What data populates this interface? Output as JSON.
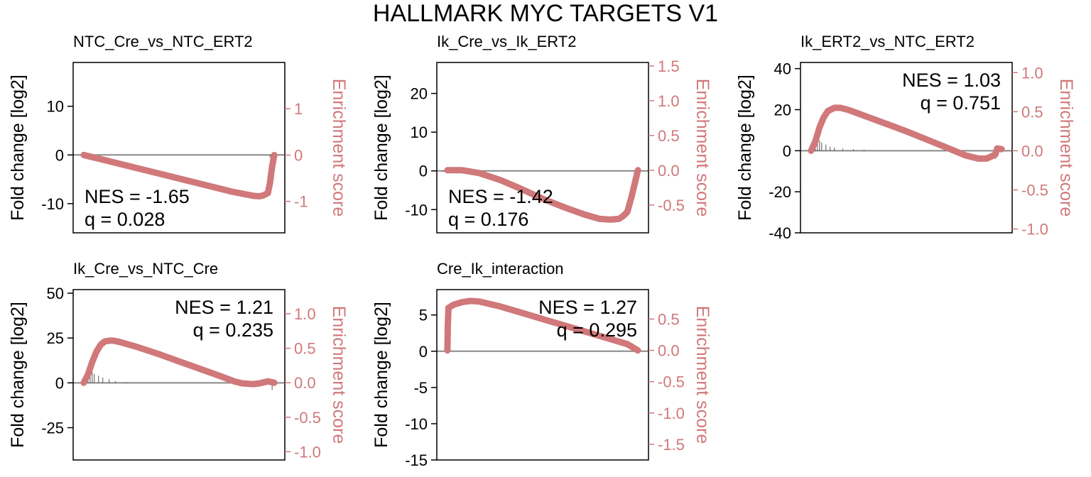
{
  "figure": {
    "title": "HALLMARK  MYC  TARGETS  V1",
    "curve_color": "#d0787a",
    "axis_color": "#000000",
    "zero_line_color": "#888888",
    "right_axis_color": "#d0787a"
  },
  "chart_data": [
    {
      "type": "line",
      "title": "NTC_Cre_vs_NTC_ERT2",
      "ylabel_left": "Fold change [log2]",
      "ylabel_right": "Enrichment score",
      "ylim_left": [
        -16,
        19
      ],
      "left_ticks": [
        10,
        0,
        -10
      ],
      "left_tick_labels": [
        "10",
        "0",
        "-10"
      ],
      "ylim_right": [
        -1.68,
        2.0
      ],
      "right_ticks": [
        1,
        0,
        -1
      ],
      "right_tick_labels": [
        "1",
        "0",
        "-1"
      ],
      "nes_label": "NES = -1.65",
      "q_label": "q = 0.028",
      "annotation_position": "bottom-left",
      "enrichment_curve": {
        "x": [
          0.05,
          0.15,
          0.3,
          0.45,
          0.6,
          0.75,
          0.85,
          0.88,
          0.9,
          0.92,
          0.93,
          0.94,
          0.95
        ],
        "y": [
          0,
          -0.11,
          -0.28,
          -0.45,
          -0.62,
          -0.79,
          -0.88,
          -0.89,
          -0.87,
          -0.82,
          -0.6,
          -0.25,
          0
        ]
      },
      "gene_bars": {
        "x": [
          0.93,
          0.935,
          0.94,
          0.945
        ],
        "y": [
          -0.5,
          -0.8,
          -1.2,
          -1.6
        ]
      }
    },
    {
      "type": "line",
      "title": "Ik_Cre_vs_Ik_ERT2",
      "ylabel_left": "Fold change [log2]",
      "ylabel_right": "Enrichment score",
      "ylim_left": [
        -16,
        28
      ],
      "left_ticks": [
        20,
        10,
        0,
        -10
      ],
      "left_tick_labels": [
        "20",
        "10",
        "0",
        "-10"
      ],
      "ylim_right": [
        -0.9,
        1.55
      ],
      "right_ticks": [
        1.5,
        1.0,
        0.5,
        0.0,
        -0.5
      ],
      "right_tick_labels": [
        "1.5",
        "1.0",
        "0.5",
        "0.0",
        "-0.5"
      ],
      "nes_label": "NES = -1.42",
      "q_label": "q = 0.176",
      "annotation_position": "bottom-left",
      "enrichment_curve": {
        "x": [
          0.05,
          0.12,
          0.2,
          0.3,
          0.4,
          0.5,
          0.6,
          0.7,
          0.77,
          0.82,
          0.86,
          0.88,
          0.9,
          0.92,
          0.95
        ],
        "y": [
          0,
          0.0,
          -0.04,
          -0.14,
          -0.27,
          -0.41,
          -0.53,
          -0.64,
          -0.7,
          -0.71,
          -0.7,
          -0.66,
          -0.6,
          -0.38,
          0
        ]
      },
      "gene_bars": {
        "x": [
          0.03,
          0.05,
          0.07
        ],
        "y": [
          -0.3,
          -0.5,
          -0.4
        ]
      }
    },
    {
      "type": "line",
      "title": "Ik_ERT2_vs_NTC_ERT2",
      "ylabel_left": "Fold change [log2]",
      "ylabel_right": "Enrichment score",
      "ylim_left": [
        -40,
        43
      ],
      "left_ticks": [
        40,
        20,
        0,
        -20,
        -40
      ],
      "left_tick_labels": [
        "40",
        "20",
        "0",
        "-20",
        "-40"
      ],
      "ylim_right": [
        -1.05,
        1.13
      ],
      "right_ticks": [
        1.0,
        0.5,
        0.0,
        -0.5,
        -1.0
      ],
      "right_tick_labels": [
        "1.0",
        "0.5",
        "0.0",
        "-0.5",
        "-1.0"
      ],
      "nes_label": "NES = 1.03",
      "q_label": "q = 0.751",
      "annotation_position": "top-right",
      "enrichment_curve": {
        "x": [
          0.05,
          0.07,
          0.09,
          0.11,
          0.13,
          0.16,
          0.19,
          0.23,
          0.3,
          0.4,
          0.5,
          0.6,
          0.7,
          0.78,
          0.84,
          0.88,
          0.92,
          0.93,
          0.95
        ],
        "y": [
          0,
          0.12,
          0.3,
          0.43,
          0.51,
          0.55,
          0.55,
          0.52,
          0.45,
          0.35,
          0.25,
          0.14,
          0.03,
          -0.06,
          -0.1,
          -0.1,
          -0.05,
          0.03,
          0.02
        ]
      },
      "gene_bars": {
        "x": [
          0.07,
          0.08,
          0.09,
          0.1,
          0.12,
          0.14,
          0.16,
          0.2,
          0.25,
          0.3,
          0.92
        ],
        "y": [
          3,
          6,
          5,
          4,
          3,
          2,
          1.5,
          1,
          0.8,
          0.5,
          -4
        ]
      }
    },
    {
      "type": "line",
      "title": "Ik_Cre_vs_NTC_Cre",
      "ylabel_left": "Fold change [log2]",
      "ylabel_right": "Enrichment score",
      "ylim_left": [
        -43,
        52
      ],
      "left_ticks": [
        50,
        25,
        0,
        -25
      ],
      "left_tick_labels": [
        "50",
        "25",
        "0",
        "-25"
      ],
      "ylim_right": [
        -1.12,
        1.35
      ],
      "right_ticks": [
        1.0,
        0.5,
        0.0,
        -0.5,
        -1.0
      ],
      "right_tick_labels": [
        "1.0",
        "0.5",
        "0.0",
        "-0.5",
        "-1.0"
      ],
      "nes_label": "NES = 1.21",
      "q_label": "q = 0.235",
      "annotation_position": "top-right",
      "enrichment_curve": {
        "x": [
          0.05,
          0.07,
          0.09,
          0.11,
          0.13,
          0.15,
          0.17,
          0.19,
          0.22,
          0.3,
          0.4,
          0.5,
          0.6,
          0.7,
          0.76,
          0.8,
          0.85,
          0.88,
          0.92,
          0.95
        ],
        "y": [
          0,
          0.12,
          0.3,
          0.45,
          0.55,
          0.6,
          0.61,
          0.61,
          0.59,
          0.52,
          0.42,
          0.31,
          0.2,
          0.09,
          0.02,
          -0.01,
          -0.02,
          -0.01,
          0.02,
          0.0
        ]
      },
      "gene_bars": {
        "x": [
          0.07,
          0.08,
          0.09,
          0.1,
          0.12,
          0.14,
          0.17,
          0.2,
          0.25,
          0.94
        ],
        "y": [
          5,
          8,
          6,
          5,
          4,
          3,
          2,
          1,
          0.5,
          -4
        ]
      }
    },
    {
      "type": "line",
      "title": "Cre_Ik_interaction",
      "ylabel_left": "Fold change [log2]",
      "ylabel_right": "Enrichment score",
      "ylim_left": [
        -15,
        8.5
      ],
      "left_ticks": [
        5,
        0,
        -5,
        -10,
        -15
      ],
      "left_tick_labels": [
        "5",
        "0",
        "-5",
        "-10",
        "-15"
      ],
      "ylim_right": [
        -1.75,
        0.97
      ],
      "right_ticks": [
        0.5,
        0.0,
        -0.5,
        -1.0,
        -1.5
      ],
      "right_tick_labels": [
        "0.5",
        "0.0",
        "-0.5",
        "-1.0",
        "-1.5"
      ],
      "nes_label": "NES = 1.27",
      "q_label": "q = 0.295",
      "annotation_position": "top-right",
      "enrichment_curve": {
        "x": [
          0.05,
          0.052,
          0.055,
          0.08,
          0.12,
          0.16,
          0.2,
          0.3,
          0.4,
          0.5,
          0.6,
          0.7,
          0.8,
          0.9,
          0.95
        ],
        "y": [
          0,
          0.4,
          0.68,
          0.73,
          0.77,
          0.79,
          0.78,
          0.7,
          0.6,
          0.5,
          0.4,
          0.3,
          0.2,
          0.1,
          0.0
        ]
      },
      "gene_bars": {
        "x": [],
        "y": []
      }
    }
  ]
}
